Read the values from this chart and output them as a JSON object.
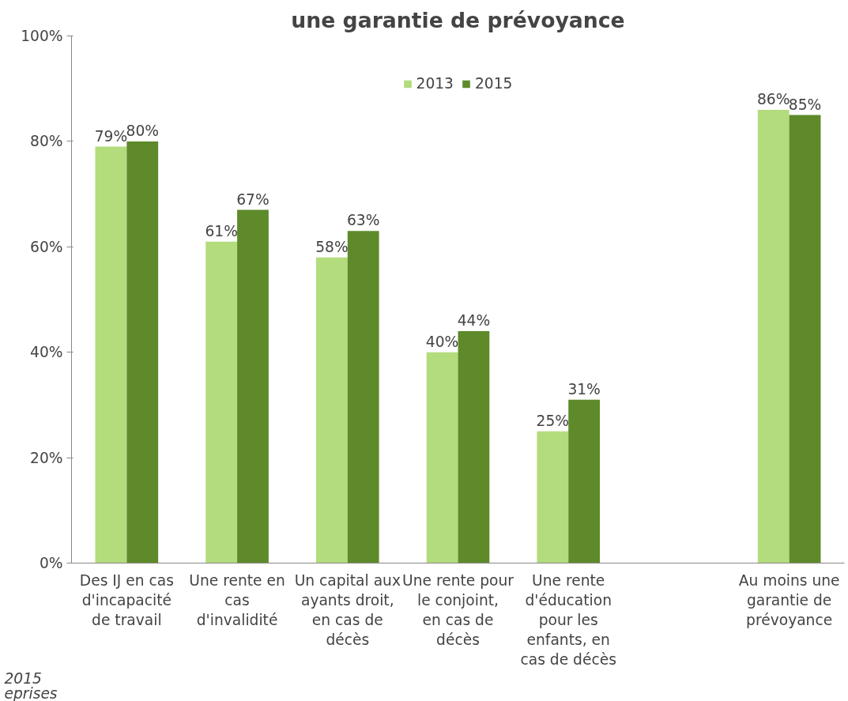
{
  "chart_data": {
    "type": "bar",
    "title": "une garantie de prévoyance",
    "categories": [
      "Des IJ en cas d'incapacité de travail",
      "Une rente en cas d'invalidité",
      "Un capital aux ayants droit, en cas de décès",
      "Une rente pour le conjoint, en cas de décès",
      "Une rente d'éducation pour les enfants, en cas de décès",
      null,
      "Au moins une garantie de prévoyance"
    ],
    "series": [
      {
        "name": "2013",
        "color": "#b3dc7c",
        "values": [
          79,
          61,
          58,
          40,
          25,
          null,
          86
        ],
        "value_labels": [
          "79%",
          "61%",
          "58%",
          "40%",
          "25%",
          null,
          "86%"
        ]
      },
      {
        "name": "2015",
        "color": "#5e8a2a",
        "values": [
          80,
          67,
          63,
          44,
          31,
          null,
          85
        ],
        "value_labels": [
          "80%",
          "67%",
          "63%",
          "44%",
          "31%",
          null,
          "85%"
        ]
      }
    ],
    "ylim": [
      0,
      100
    ],
    "yticks": [
      {
        "value": 0,
        "label": "0%"
      },
      {
        "value": 20,
        "label": "20%"
      },
      {
        "value": 40,
        "label": "40%"
      },
      {
        "value": 60,
        "label": "60%"
      },
      {
        "value": 80,
        "label": "80%"
      },
      {
        "value": 100,
        "label": "100%"
      }
    ],
    "grid": false,
    "legend": "top",
    "annotations": [
      "2015",
      "eprises"
    ]
  }
}
